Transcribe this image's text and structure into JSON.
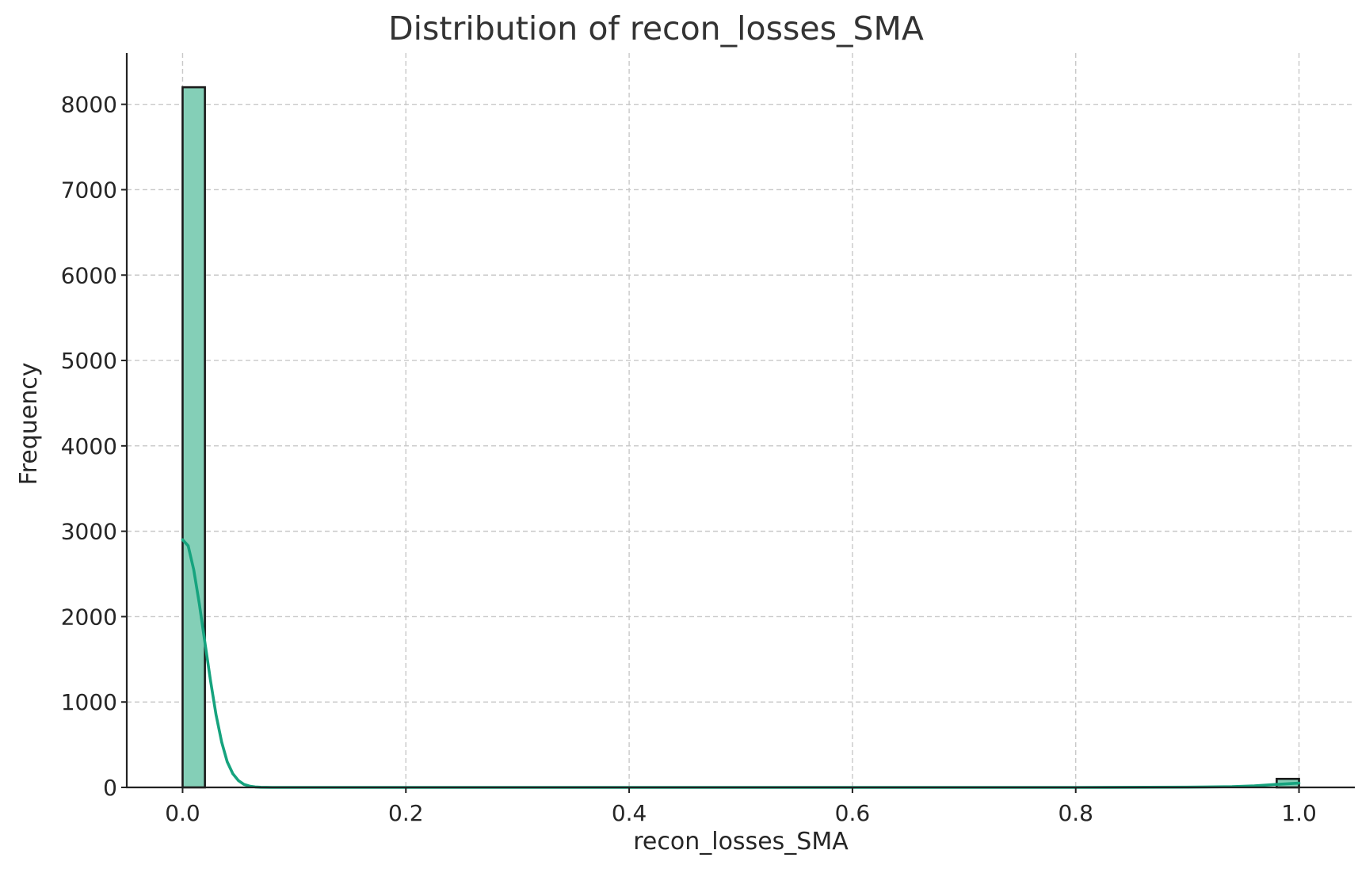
{
  "chart_data": {
    "type": "bar",
    "subtype": "histogram",
    "title": "Distribution of recon_losses_SMA",
    "xlabel": "recon_losses_SMA",
    "ylabel": "Frequency",
    "xlim": [
      -0.05,
      1.05
    ],
    "ylim": [
      0,
      8600
    ],
    "grid": true,
    "xticks": [
      0.0,
      0.2,
      0.4,
      0.6,
      0.8,
      1.0
    ],
    "xtick_labels": [
      "0.0",
      "0.2",
      "0.4",
      "0.6",
      "0.8",
      "1.0"
    ],
    "yticks": [
      0,
      1000,
      2000,
      3000,
      4000,
      5000,
      6000,
      7000,
      8000
    ],
    "ytick_labels": [
      "0",
      "1000",
      "2000",
      "3000",
      "4000",
      "5000",
      "6000",
      "7000",
      "8000"
    ],
    "bin_width": 0.02,
    "bins": [
      {
        "start": 0.0,
        "value": 8200
      },
      {
        "start": 0.98,
        "value": 100
      }
    ],
    "kde": {
      "x": [
        0.0,
        0.005,
        0.01,
        0.015,
        0.02,
        0.025,
        0.03,
        0.035,
        0.04,
        0.045,
        0.05,
        0.055,
        0.06,
        0.065,
        0.07,
        0.08,
        0.09,
        0.1,
        0.2,
        0.4,
        0.6,
        0.8,
        0.9,
        0.94,
        0.96,
        0.98,
        1.0
      ],
      "y": [
        2900,
        2830,
        2550,
        2150,
        1700,
        1250,
        850,
        530,
        300,
        160,
        80,
        35,
        15,
        6,
        2,
        0,
        0,
        0,
        0,
        0,
        0,
        0,
        3,
        8,
        18,
        35,
        50
      ]
    },
    "colors": {
      "bar_fill": "#84cfb7",
      "bar_edge": "#1a1a1a",
      "kde_line": "#16a37e"
    }
  }
}
